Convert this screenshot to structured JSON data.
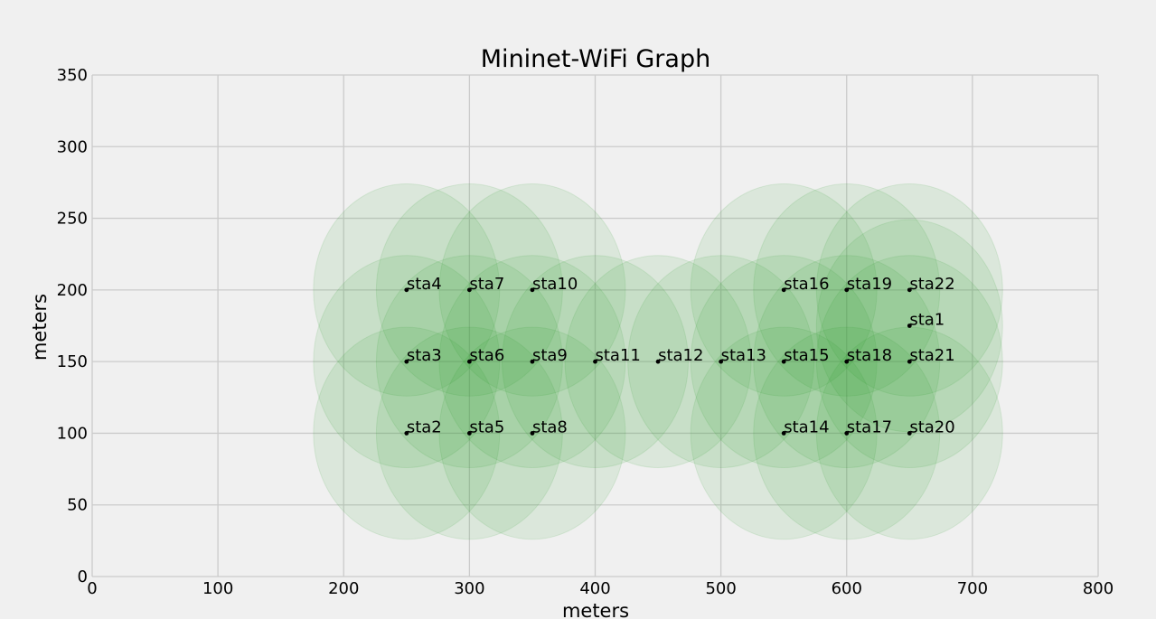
{
  "chart_data": {
    "type": "scatter",
    "title": "Mininet-WiFi Graph",
    "xlabel": "meters",
    "ylabel": "meters",
    "xlim": [
      0,
      800
    ],
    "ylim": [
      0,
      350
    ],
    "xticks": [
      0,
      100,
      200,
      300,
      400,
      500,
      600,
      700,
      800
    ],
    "yticks": [
      0,
      50,
      100,
      150,
      200,
      250,
      300,
      350
    ],
    "grid": true,
    "range_meters": 74,
    "range_color": "#2ca02c",
    "point_color": "#000000",
    "stations": [
      {
        "name": "sta1",
        "x": 650,
        "y": 175
      },
      {
        "name": "sta2",
        "x": 250,
        "y": 100
      },
      {
        "name": "sta3",
        "x": 250,
        "y": 150
      },
      {
        "name": "sta4",
        "x": 250,
        "y": 200
      },
      {
        "name": "sta5",
        "x": 300,
        "y": 100
      },
      {
        "name": "sta6",
        "x": 300,
        "y": 150
      },
      {
        "name": "sta7",
        "x": 300,
        "y": 200
      },
      {
        "name": "sta8",
        "x": 350,
        "y": 100
      },
      {
        "name": "sta9",
        "x": 350,
        "y": 150
      },
      {
        "name": "sta10",
        "x": 350,
        "y": 200
      },
      {
        "name": "sta11",
        "x": 400,
        "y": 150
      },
      {
        "name": "sta12",
        "x": 450,
        "y": 150
      },
      {
        "name": "sta13",
        "x": 500,
        "y": 150
      },
      {
        "name": "sta14",
        "x": 550,
        "y": 100
      },
      {
        "name": "sta15",
        "x": 550,
        "y": 150
      },
      {
        "name": "sta16",
        "x": 550,
        "y": 200
      },
      {
        "name": "sta17",
        "x": 600,
        "y": 100
      },
      {
        "name": "sta18",
        "x": 600,
        "y": 150
      },
      {
        "name": "sta19",
        "x": 600,
        "y": 200
      },
      {
        "name": "sta20",
        "x": 650,
        "y": 100
      },
      {
        "name": "sta21",
        "x": 650,
        "y": 150
      },
      {
        "name": "sta22",
        "x": 650,
        "y": 200
      }
    ]
  }
}
